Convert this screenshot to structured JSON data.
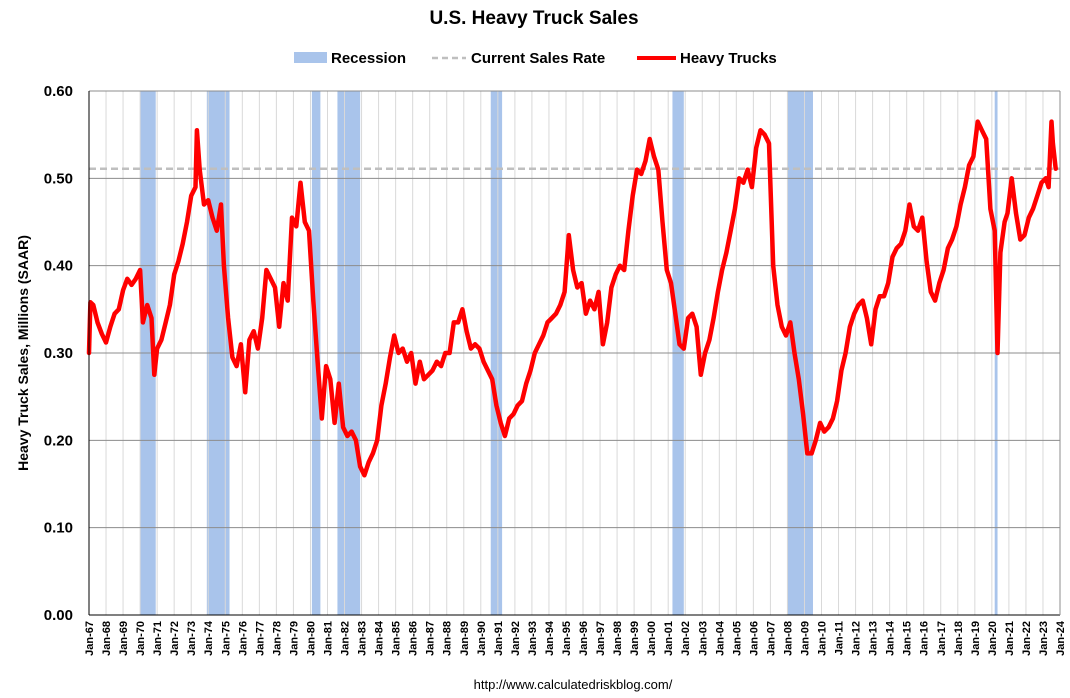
{
  "chart_data": {
    "type": "line",
    "title": "U.S. Heavy Truck Sales",
    "ylabel": "Heavy Truck Sales, Millions (SAAR)",
    "xlabel": "",
    "source": "http://www.calculatedriskblog.com/",
    "ylim": [
      0.0,
      0.6
    ],
    "yticks": [
      "0.00",
      "0.10",
      "0.20",
      "0.30",
      "0.40",
      "0.50",
      "0.60"
    ],
    "ytick_values": [
      0.0,
      0.1,
      0.2,
      0.3,
      0.4,
      0.5,
      0.6
    ],
    "xlim": [
      "1967-01",
      "2024-01"
    ],
    "xticks": [
      "Jan-67",
      "Jan-68",
      "Jan-69",
      "Jan-70",
      "Jan-71",
      "Jan-72",
      "Jan-73",
      "Jan-74",
      "Jan-75",
      "Jan-76",
      "Jan-77",
      "Jan-78",
      "Jan-79",
      "Jan-80",
      "Jan-81",
      "Jan-82",
      "Jan-83",
      "Jan-84",
      "Jan-85",
      "Jan-86",
      "Jan-87",
      "Jan-88",
      "Jan-89",
      "Jan-90",
      "Jan-91",
      "Jan-92",
      "Jan-93",
      "Jan-94",
      "Jan-95",
      "Jan-96",
      "Jan-97",
      "Jan-98",
      "Jan-99",
      "Jan-00",
      "Jan-01",
      "Jan-02",
      "Jan-03",
      "Jan-04",
      "Jan-05",
      "Jan-06",
      "Jan-07",
      "Jan-08",
      "Jan-09",
      "Jan-10",
      "Jan-11",
      "Jan-12",
      "Jan-13",
      "Jan-14",
      "Jan-15",
      "Jan-16",
      "Jan-17",
      "Jan-18",
      "Jan-19",
      "Jan-20",
      "Jan-21",
      "Jan-22",
      "Jan-23",
      "Jan-24"
    ],
    "grid": "vertical and horizontal",
    "legend_position": "top",
    "legend": [
      {
        "label": "Recession",
        "color": "#a9c4eb",
        "kind": "band"
      },
      {
        "label": "Current Sales Rate",
        "color": "#bfbfbf",
        "kind": "dashed-line"
      },
      {
        "label": "Heavy Trucks",
        "color": "#ff0000",
        "kind": "line"
      }
    ],
    "recessions": [
      [
        "1970-01",
        "1970-11"
      ],
      [
        "1973-12",
        "1975-03"
      ],
      [
        "1980-02",
        "1980-07"
      ],
      [
        "1981-08",
        "1982-11"
      ],
      [
        "1990-08",
        "1991-03"
      ],
      [
        "2001-04",
        "2001-11"
      ],
      [
        "2008-01",
        "2009-06"
      ],
      [
        "2020-03",
        "2020-04"
      ]
    ],
    "current_rate": 0.511,
    "series": [
      {
        "name": "Heavy Trucks",
        "color": "#ff0000",
        "points": [
          [
            "1967-01",
            0.3
          ],
          [
            "1967-02",
            0.358
          ],
          [
            "1967-04",
            0.355
          ],
          [
            "1967-07",
            0.335
          ],
          [
            "1967-10",
            0.322
          ],
          [
            "1968-01",
            0.312
          ],
          [
            "1968-04",
            0.33
          ],
          [
            "1968-07",
            0.345
          ],
          [
            "1968-10",
            0.35
          ],
          [
            "1969-01",
            0.372
          ],
          [
            "1969-04",
            0.385
          ],
          [
            "1969-07",
            0.378
          ],
          [
            "1969-10",
            0.385
          ],
          [
            "1970-01",
            0.395
          ],
          [
            "1970-03",
            0.335
          ],
          [
            "1970-06",
            0.355
          ],
          [
            "1970-09",
            0.34
          ],
          [
            "1970-11",
            0.275
          ],
          [
            "1971-01",
            0.305
          ],
          [
            "1971-04",
            0.315
          ],
          [
            "1971-07",
            0.335
          ],
          [
            "1971-10",
            0.355
          ],
          [
            "1972-01",
            0.39
          ],
          [
            "1972-04",
            0.405
          ],
          [
            "1972-07",
            0.425
          ],
          [
            "1972-10",
            0.45
          ],
          [
            "1973-01",
            0.48
          ],
          [
            "1973-04",
            0.49
          ],
          [
            "1973-05",
            0.555
          ],
          [
            "1973-07",
            0.51
          ],
          [
            "1973-10",
            0.47
          ],
          [
            "1974-01",
            0.475
          ],
          [
            "1974-04",
            0.455
          ],
          [
            "1974-07",
            0.44
          ],
          [
            "1974-10",
            0.47
          ],
          [
            "1974-12",
            0.4
          ],
          [
            "1975-03",
            0.34
          ],
          [
            "1975-06",
            0.295
          ],
          [
            "1975-09",
            0.285
          ],
          [
            "1975-12",
            0.31
          ],
          [
            "1976-03",
            0.255
          ],
          [
            "1976-06",
            0.315
          ],
          [
            "1976-09",
            0.325
          ],
          [
            "1976-12",
            0.305
          ],
          [
            "1977-03",
            0.34
          ],
          [
            "1977-06",
            0.395
          ],
          [
            "1977-09",
            0.385
          ],
          [
            "1977-12",
            0.375
          ],
          [
            "1978-03",
            0.33
          ],
          [
            "1978-06",
            0.38
          ],
          [
            "1978-09",
            0.36
          ],
          [
            "1978-12",
            0.455
          ],
          [
            "1979-03",
            0.445
          ],
          [
            "1979-06",
            0.495
          ],
          [
            "1979-09",
            0.45
          ],
          [
            "1979-12",
            0.44
          ],
          [
            "1980-03",
            0.36
          ],
          [
            "1980-06",
            0.29
          ],
          [
            "1980-09",
            0.225
          ],
          [
            "1980-12",
            0.285
          ],
          [
            "1981-03",
            0.27
          ],
          [
            "1981-06",
            0.22
          ],
          [
            "1981-09",
            0.265
          ],
          [
            "1981-12",
            0.215
          ],
          [
            "1982-03",
            0.205
          ],
          [
            "1982-06",
            0.21
          ],
          [
            "1982-09",
            0.2
          ],
          [
            "1982-12",
            0.17
          ],
          [
            "1983-03",
            0.16
          ],
          [
            "1983-06",
            0.175
          ],
          [
            "1983-09",
            0.185
          ],
          [
            "1983-12",
            0.2
          ],
          [
            "1984-03",
            0.24
          ],
          [
            "1984-06",
            0.265
          ],
          [
            "1984-09",
            0.295
          ],
          [
            "1984-12",
            0.32
          ],
          [
            "1985-03",
            0.3
          ],
          [
            "1985-06",
            0.305
          ],
          [
            "1985-09",
            0.29
          ],
          [
            "1985-12",
            0.3
          ],
          [
            "1986-03",
            0.265
          ],
          [
            "1986-06",
            0.29
          ],
          [
            "1986-09",
            0.27
          ],
          [
            "1986-12",
            0.275
          ],
          [
            "1987-03",
            0.28
          ],
          [
            "1987-06",
            0.29
          ],
          [
            "1987-09",
            0.285
          ],
          [
            "1987-12",
            0.3
          ],
          [
            "1988-03",
            0.3
          ],
          [
            "1988-06",
            0.335
          ],
          [
            "1988-09",
            0.335
          ],
          [
            "1988-12",
            0.35
          ],
          [
            "1989-03",
            0.325
          ],
          [
            "1989-06",
            0.305
          ],
          [
            "1989-09",
            0.31
          ],
          [
            "1989-12",
            0.305
          ],
          [
            "1990-03",
            0.29
          ],
          [
            "1990-06",
            0.28
          ],
          [
            "1990-09",
            0.27
          ],
          [
            "1990-12",
            0.24
          ],
          [
            "1991-03",
            0.22
          ],
          [
            "1991-06",
            0.205
          ],
          [
            "1991-09",
            0.225
          ],
          [
            "1991-12",
            0.23
          ],
          [
            "1992-03",
            0.24
          ],
          [
            "1992-06",
            0.245
          ],
          [
            "1992-09",
            0.265
          ],
          [
            "1992-12",
            0.28
          ],
          [
            "1993-03",
            0.3
          ],
          [
            "1993-06",
            0.31
          ],
          [
            "1993-09",
            0.32
          ],
          [
            "1993-12",
            0.335
          ],
          [
            "1994-03",
            0.34
          ],
          [
            "1994-06",
            0.345
          ],
          [
            "1994-09",
            0.355
          ],
          [
            "1994-12",
            0.37
          ],
          [
            "1995-03",
            0.435
          ],
          [
            "1995-06",
            0.395
          ],
          [
            "1995-09",
            0.375
          ],
          [
            "1995-12",
            0.38
          ],
          [
            "1996-03",
            0.345
          ],
          [
            "1996-06",
            0.36
          ],
          [
            "1996-09",
            0.35
          ],
          [
            "1996-12",
            0.37
          ],
          [
            "1997-03",
            0.31
          ],
          [
            "1997-06",
            0.335
          ],
          [
            "1997-09",
            0.375
          ],
          [
            "1997-12",
            0.39
          ],
          [
            "1998-03",
            0.4
          ],
          [
            "1998-06",
            0.395
          ],
          [
            "1998-09",
            0.44
          ],
          [
            "1998-12",
            0.48
          ],
          [
            "1999-03",
            0.51
          ],
          [
            "1999-06",
            0.505
          ],
          [
            "1999-09",
            0.52
          ],
          [
            "1999-12",
            0.545
          ],
          [
            "2000-03",
            0.525
          ],
          [
            "2000-06",
            0.51
          ],
          [
            "2000-09",
            0.45
          ],
          [
            "2000-12",
            0.395
          ],
          [
            "2001-03",
            0.38
          ],
          [
            "2001-06",
            0.345
          ],
          [
            "2001-09",
            0.31
          ],
          [
            "2001-12",
            0.305
          ],
          [
            "2002-03",
            0.34
          ],
          [
            "2002-06",
            0.345
          ],
          [
            "2002-09",
            0.33
          ],
          [
            "2002-12",
            0.275
          ],
          [
            "2003-03",
            0.3
          ],
          [
            "2003-06",
            0.315
          ],
          [
            "2003-09",
            0.34
          ],
          [
            "2003-12",
            0.37
          ],
          [
            "2004-03",
            0.395
          ],
          [
            "2004-06",
            0.415
          ],
          [
            "2004-09",
            0.44
          ],
          [
            "2004-12",
            0.465
          ],
          [
            "2005-03",
            0.5
          ],
          [
            "2005-06",
            0.495
          ],
          [
            "2005-09",
            0.51
          ],
          [
            "2005-12",
            0.49
          ],
          [
            "2006-03",
            0.535
          ],
          [
            "2006-06",
            0.555
          ],
          [
            "2006-09",
            0.55
          ],
          [
            "2006-12",
            0.54
          ],
          [
            "2007-03",
            0.4
          ],
          [
            "2007-06",
            0.355
          ],
          [
            "2007-09",
            0.33
          ],
          [
            "2007-12",
            0.32
          ],
          [
            "2008-03",
            0.335
          ],
          [
            "2008-06",
            0.3
          ],
          [
            "2008-09",
            0.27
          ],
          [
            "2008-12",
            0.23
          ],
          [
            "2009-03",
            0.185
          ],
          [
            "2009-06",
            0.185
          ],
          [
            "2009-09",
            0.2
          ],
          [
            "2009-12",
            0.22
          ],
          [
            "2010-03",
            0.21
          ],
          [
            "2010-06",
            0.215
          ],
          [
            "2010-09",
            0.225
          ],
          [
            "2010-12",
            0.245
          ],
          [
            "2011-03",
            0.28
          ],
          [
            "2011-06",
            0.3
          ],
          [
            "2011-09",
            0.33
          ],
          [
            "2011-12",
            0.345
          ],
          [
            "2012-03",
            0.355
          ],
          [
            "2012-06",
            0.36
          ],
          [
            "2012-09",
            0.34
          ],
          [
            "2012-12",
            0.31
          ],
          [
            "2013-03",
            0.35
          ],
          [
            "2013-06",
            0.365
          ],
          [
            "2013-09",
            0.365
          ],
          [
            "2013-12",
            0.38
          ],
          [
            "2014-03",
            0.41
          ],
          [
            "2014-06",
            0.42
          ],
          [
            "2014-09",
            0.425
          ],
          [
            "2014-12",
            0.44
          ],
          [
            "2015-03",
            0.47
          ],
          [
            "2015-06",
            0.445
          ],
          [
            "2015-09",
            0.44
          ],
          [
            "2015-12",
            0.455
          ],
          [
            "2016-03",
            0.405
          ],
          [
            "2016-06",
            0.37
          ],
          [
            "2016-09",
            0.36
          ],
          [
            "2016-12",
            0.38
          ],
          [
            "2017-03",
            0.395
          ],
          [
            "2017-06",
            0.42
          ],
          [
            "2017-09",
            0.43
          ],
          [
            "2017-12",
            0.445
          ],
          [
            "2018-03",
            0.47
          ],
          [
            "2018-06",
            0.49
          ],
          [
            "2018-09",
            0.515
          ],
          [
            "2018-12",
            0.525
          ],
          [
            "2019-03",
            0.565
          ],
          [
            "2019-06",
            0.555
          ],
          [
            "2019-09",
            0.545
          ],
          [
            "2019-12",
            0.465
          ],
          [
            "2020-03",
            0.44
          ],
          [
            "2020-05",
            0.3
          ],
          [
            "2020-07",
            0.415
          ],
          [
            "2020-10",
            0.45
          ],
          [
            "2020-12",
            0.46
          ],
          [
            "2021-03",
            0.5
          ],
          [
            "2021-06",
            0.46
          ],
          [
            "2021-09",
            0.43
          ],
          [
            "2021-12",
            0.435
          ],
          [
            "2022-03",
            0.455
          ],
          [
            "2022-06",
            0.465
          ],
          [
            "2022-09",
            0.48
          ],
          [
            "2022-12",
            0.495
          ],
          [
            "2023-03",
            0.5
          ],
          [
            "2023-05",
            0.49
          ],
          [
            "2023-07",
            0.565
          ],
          [
            "2023-08",
            0.54
          ],
          [
            "2023-10",
            0.511
          ]
        ]
      }
    ]
  }
}
